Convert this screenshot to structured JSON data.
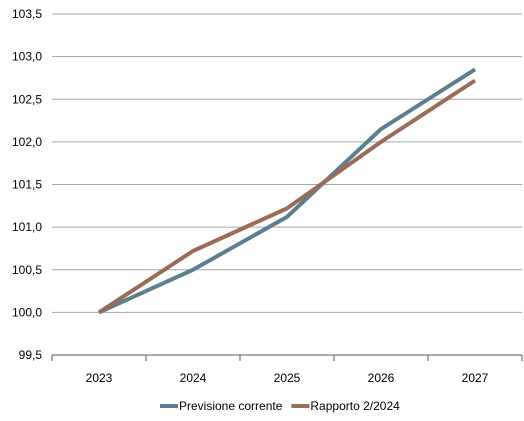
{
  "chart_data": {
    "type": "line",
    "categories": [
      "2023",
      "2024",
      "2025",
      "2026",
      "2027"
    ],
    "series": [
      {
        "name": "Previsione corrente",
        "color": "#5b7f8c",
        "values": [
          100.0,
          100.5,
          101.12,
          102.15,
          102.85
        ]
      },
      {
        "name": "Rapporto 2/2024",
        "color": "#9c6b58",
        "values": [
          100.0,
          100.72,
          101.22,
          102.0,
          102.72
        ]
      }
    ],
    "yticks": [
      "99,5",
      "100,0",
      "100,5",
      "101,0",
      "101,5",
      "102,0",
      "102,5",
      "103,0",
      "103,5"
    ],
    "ylim": [
      99.5,
      103.5
    ],
    "grid": true,
    "legend": "bottom"
  }
}
